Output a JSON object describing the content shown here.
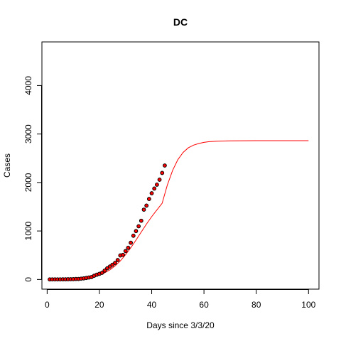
{
  "chart_data": {
    "type": "scatter",
    "title": "DC",
    "xlabel": "Days since 3/3/20",
    "ylabel": "Cases",
    "xlim": [
      -2,
      104
    ],
    "ylim": [
      -200,
      4900
    ],
    "x_ticks": [
      0,
      20,
      40,
      60,
      80,
      100
    ],
    "y_ticks": [
      0,
      1000,
      2000,
      3000,
      4000
    ],
    "grid": false,
    "series": [
      {
        "style": "points",
        "color": "#000000",
        "fill": "#ff0000",
        "x": [
          1,
          2,
          3,
          4,
          5,
          6,
          7,
          8,
          9,
          10,
          11,
          12,
          13,
          14,
          15,
          16,
          17,
          18,
          19,
          20,
          21,
          22,
          23,
          24,
          25,
          26,
          27,
          28,
          29,
          30,
          31,
          32,
          33,
          34,
          35,
          36,
          37,
          38,
          39,
          40,
          41,
          42,
          43,
          44,
          45
        ],
        "y": [
          1,
          2,
          2,
          2,
          2,
          3,
          3,
          4,
          5,
          6,
          10,
          10,
          16,
          22,
          31,
          40,
          49,
          77,
          98,
          116,
          137,
          183,
          231,
          267,
          304,
          342,
          401,
          495,
          507,
          586,
          653,
          757,
          902,
          998,
          1097,
          1211,
          1440,
          1523,
          1660,
          1778,
          1875,
          1955,
          2058,
          2197,
          2350
        ]
      },
      {
        "style": "line",
        "color": "#ff0000",
        "x": [
          1,
          5,
          10,
          12,
          14,
          16,
          18,
          20,
          22,
          24,
          26,
          28,
          30,
          32,
          34,
          36,
          38,
          40,
          42,
          44,
          46,
          48,
          50,
          52,
          54,
          56,
          58,
          60,
          62,
          65,
          70,
          75,
          80,
          85,
          90,
          95,
          100
        ],
        "y": [
          1,
          3,
          12,
          18,
          27,
          41,
          62,
          93,
          137,
          198,
          280,
          383,
          509,
          655,
          813,
          979,
          1142,
          1295,
          1435,
          1570,
          1950,
          2250,
          2470,
          2620,
          2715,
          2770,
          2805,
          2828,
          2842,
          2852,
          2858,
          2862,
          2863,
          2863,
          2863,
          2863,
          2863
        ]
      }
    ]
  }
}
